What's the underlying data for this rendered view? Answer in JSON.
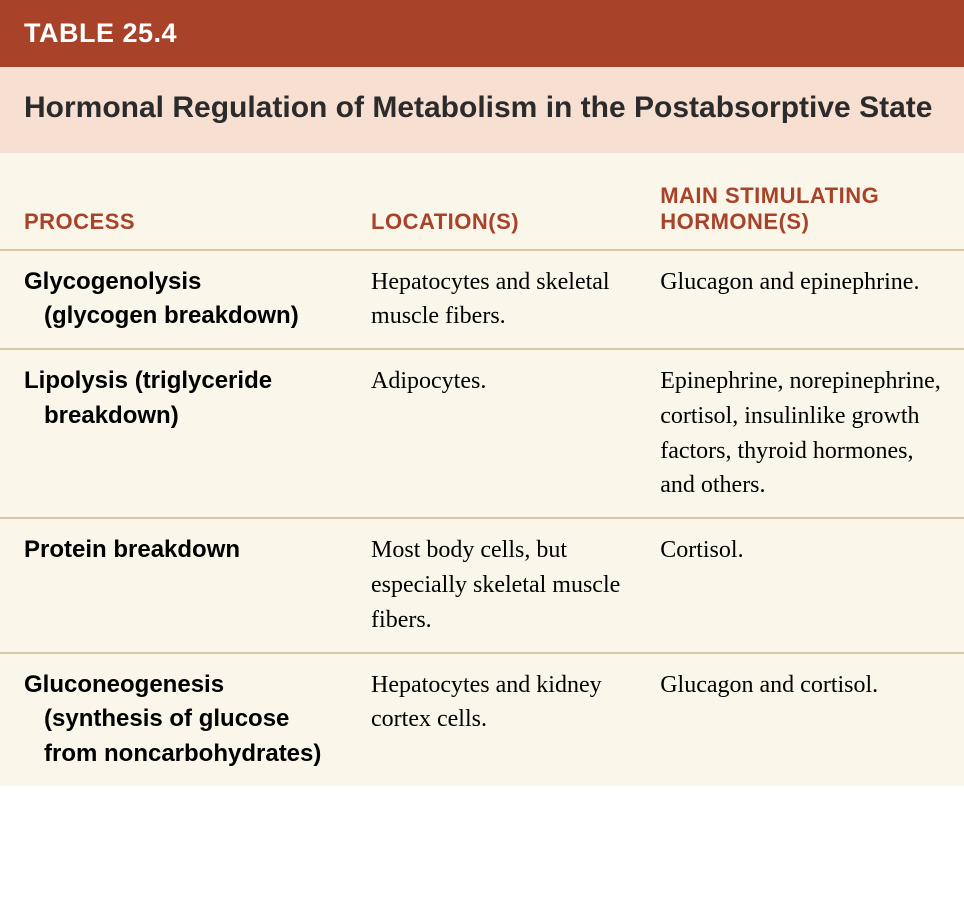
{
  "colors": {
    "header_bg": "#a8432a",
    "title_bg": "#f7e0d2",
    "title_color": "#2b2b2b",
    "col_header_color": "#a8432a",
    "body_bg": "#fbf6ea",
    "divider_color": "#d9c7a8"
  },
  "typography": {
    "table_number_fontsize": 27,
    "title_fontsize": 30,
    "col_header_fontsize": 22,
    "cell_fontsize": 24
  },
  "table": {
    "number": "TABLE 25.4",
    "title": "Hormonal Regulation of Metabolism in the Postabsorptive State",
    "columns": [
      {
        "label": "PROCESS",
        "width_pct": 36
      },
      {
        "label": "LOCATION(S)",
        "width_pct": 30
      },
      {
        "label": "MAIN STIMULATING HORMONE(S)",
        "width_pct": 34
      }
    ],
    "rows": [
      {
        "process_main": "Glycogenolysis",
        "process_sub": "(glycogen breakdown)",
        "location": "Hepatocytes and skeletal muscle fibers.",
        "hormone": "Glucagon and epinephrine."
      },
      {
        "process_main": "Lipolysis (triglyceride",
        "process_sub": "breakdown)",
        "location": "Adipocytes.",
        "hormone": "Epinephrine, norepinephrine, cortisol, insulinlike growth factors, thyroid hormones, and others."
      },
      {
        "process_main": "Protein breakdown",
        "process_sub": "",
        "location": "Most body cells, but especially skeletal muscle fibers.",
        "hormone": "Cortisol."
      },
      {
        "process_main": "Gluconeogenesis",
        "process_sub": "(synthesis of glucose from noncarbohydrates)",
        "location": "Hepatocytes and kidney cortex cells.",
        "hormone": "Glucagon and cortisol."
      }
    ]
  }
}
